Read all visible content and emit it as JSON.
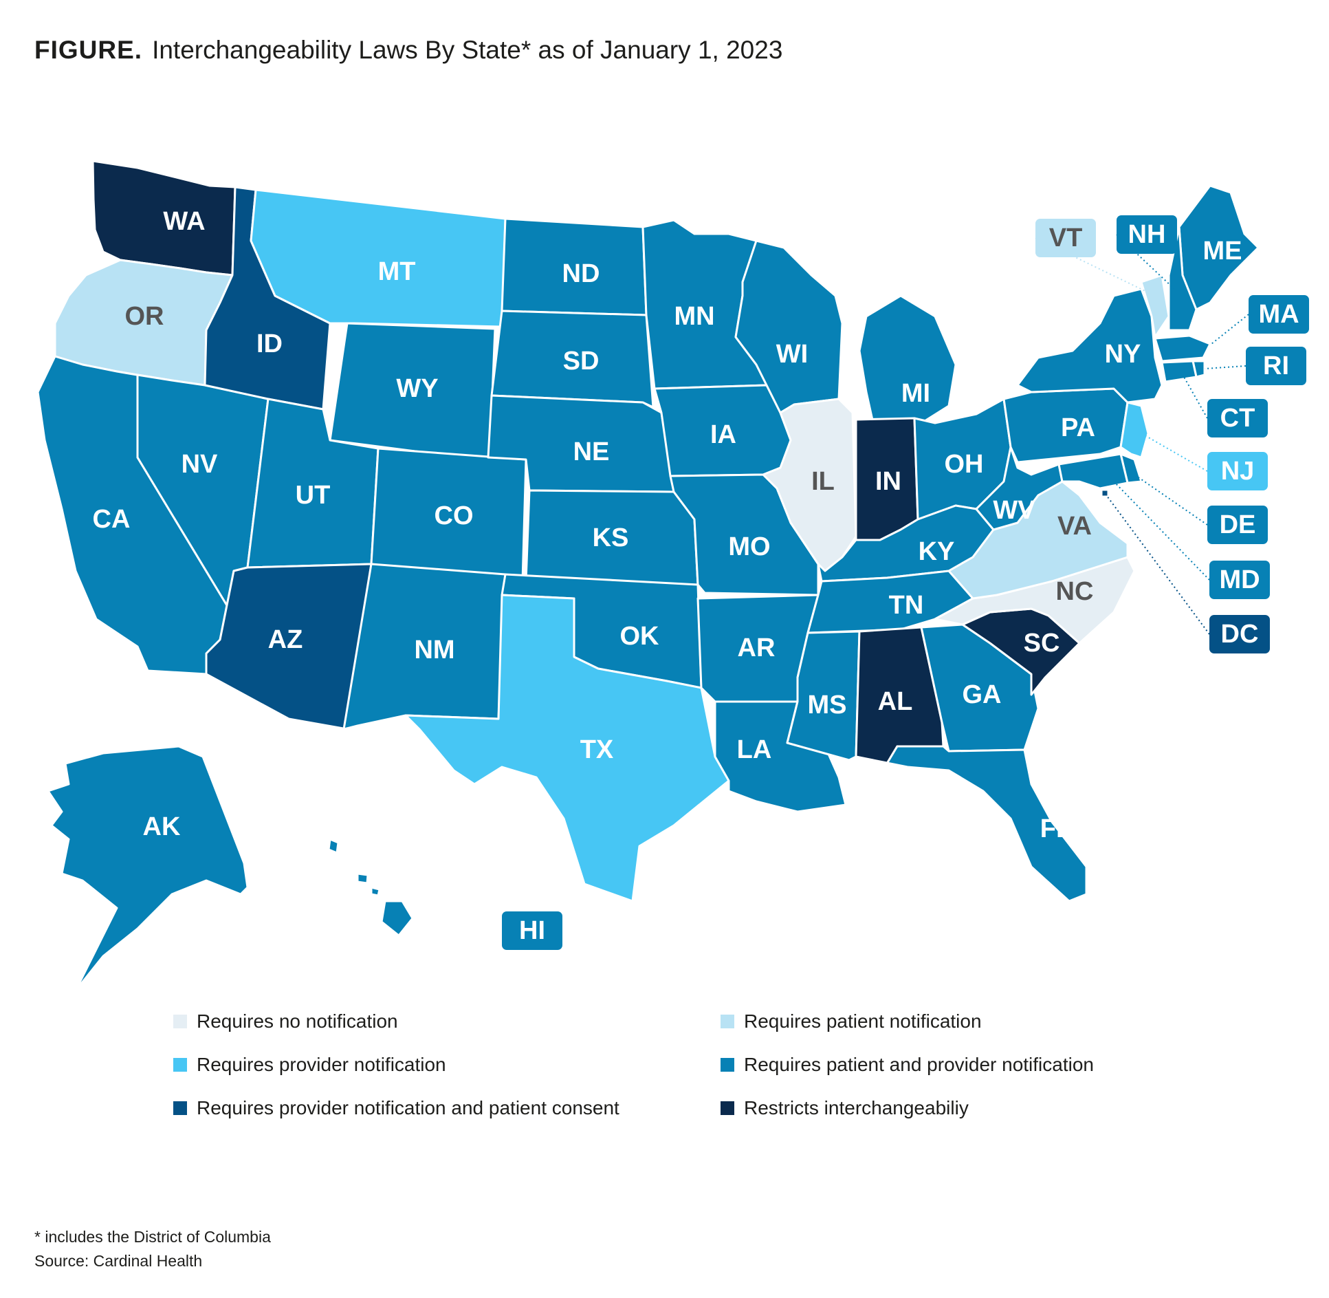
{
  "figure": {
    "lead": "FIGURE.",
    "title": "Interchangeability Laws By State* as of January 1, 2023"
  },
  "colors": {
    "none": "#e5eef4",
    "patient": "#b8e2f4",
    "provider": "#47c6f4",
    "both": "#0781b5",
    "consent": "#045186",
    "restricts": "#0b2a4d",
    "label_light": "#555555",
    "label_dark": "#ffffff"
  },
  "legend": [
    {
      "key": "none",
      "label": "Requires no notification"
    },
    {
      "key": "patient",
      "label": "Requires patient notification"
    },
    {
      "key": "provider",
      "label": "Requires provider notification"
    },
    {
      "key": "both",
      "label": "Requires patient and provider notification"
    },
    {
      "key": "consent",
      "label": "Requires provider notification and patient consent"
    },
    {
      "key": "restricts",
      "label": "Restricts interchangeabiliy"
    }
  ],
  "states": [
    {
      "abbr": "WA",
      "category": "restricts"
    },
    {
      "abbr": "OR",
      "category": "patient"
    },
    {
      "abbr": "CA",
      "category": "both"
    },
    {
      "abbr": "NV",
      "category": "both"
    },
    {
      "abbr": "ID",
      "category": "consent"
    },
    {
      "abbr": "MT",
      "category": "provider"
    },
    {
      "abbr": "WY",
      "category": "both"
    },
    {
      "abbr": "UT",
      "category": "both"
    },
    {
      "abbr": "AZ",
      "category": "consent"
    },
    {
      "abbr": "CO",
      "category": "both"
    },
    {
      "abbr": "NM",
      "category": "both"
    },
    {
      "abbr": "ND",
      "category": "both"
    },
    {
      "abbr": "SD",
      "category": "both"
    },
    {
      "abbr": "NE",
      "category": "both"
    },
    {
      "abbr": "KS",
      "category": "both"
    },
    {
      "abbr": "OK",
      "category": "both"
    },
    {
      "abbr": "TX",
      "category": "provider"
    },
    {
      "abbr": "MN",
      "category": "both"
    },
    {
      "abbr": "IA",
      "category": "both"
    },
    {
      "abbr": "MO",
      "category": "both"
    },
    {
      "abbr": "AR",
      "category": "both"
    },
    {
      "abbr": "LA",
      "category": "both"
    },
    {
      "abbr": "WI",
      "category": "both"
    },
    {
      "abbr": "IL",
      "category": "none"
    },
    {
      "abbr": "MI",
      "category": "both"
    },
    {
      "abbr": "IN",
      "category": "restricts"
    },
    {
      "abbr": "OH",
      "category": "both"
    },
    {
      "abbr": "KY",
      "category": "both"
    },
    {
      "abbr": "TN",
      "category": "both"
    },
    {
      "abbr": "MS",
      "category": "both"
    },
    {
      "abbr": "AL",
      "category": "restricts"
    },
    {
      "abbr": "GA",
      "category": "both"
    },
    {
      "abbr": "FL",
      "category": "both"
    },
    {
      "abbr": "SC",
      "category": "restricts"
    },
    {
      "abbr": "NC",
      "category": "none"
    },
    {
      "abbr": "VA",
      "category": "patient"
    },
    {
      "abbr": "WV",
      "category": "both"
    },
    {
      "abbr": "PA",
      "category": "both"
    },
    {
      "abbr": "NY",
      "category": "both"
    },
    {
      "abbr": "ME",
      "category": "both"
    },
    {
      "abbr": "VT",
      "category": "patient"
    },
    {
      "abbr": "NH",
      "category": "both"
    },
    {
      "abbr": "MA",
      "category": "both"
    },
    {
      "abbr": "RI",
      "category": "both"
    },
    {
      "abbr": "CT",
      "category": "both"
    },
    {
      "abbr": "NJ",
      "category": "provider"
    },
    {
      "abbr": "DE",
      "category": "both"
    },
    {
      "abbr": "MD",
      "category": "both"
    },
    {
      "abbr": "DC",
      "category": "consent"
    },
    {
      "abbr": "AK",
      "category": "both"
    },
    {
      "abbr": "HI",
      "category": "both"
    }
  ],
  "footnote": "* includes the District of Columbia",
  "source": "Source: Cardinal Health"
}
